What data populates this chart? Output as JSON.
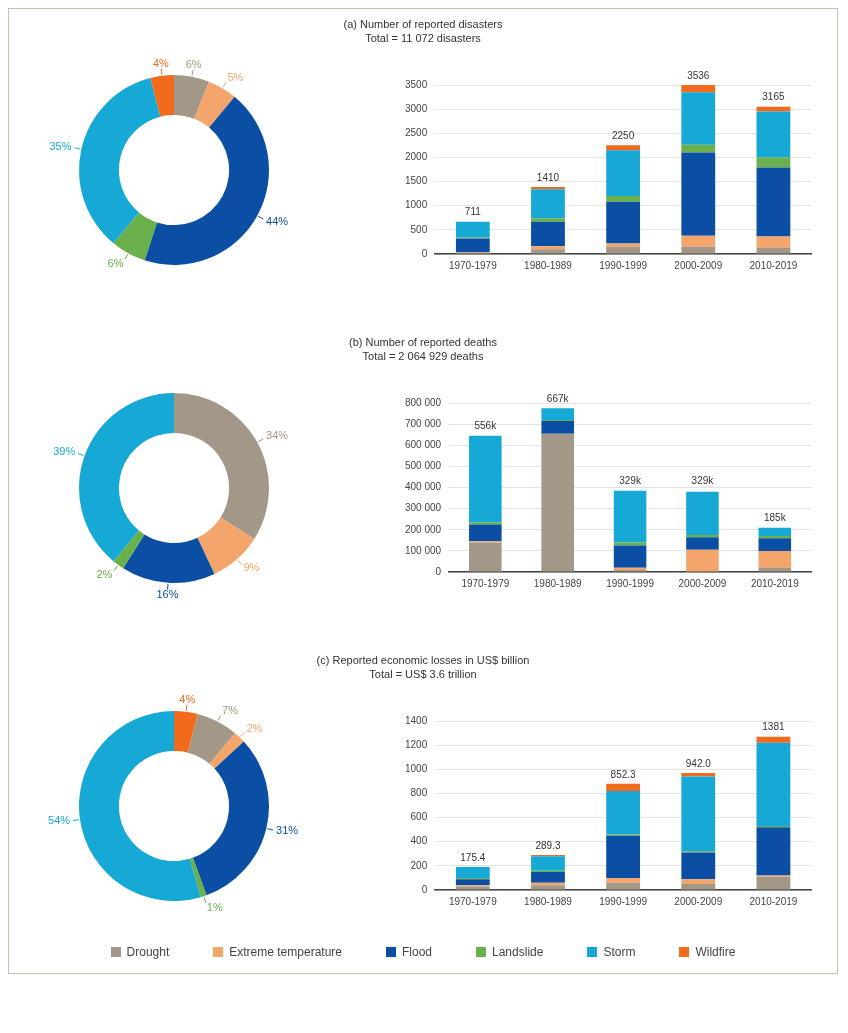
{
  "chart_data": [
    {
      "type": "donut",
      "title": "(a) Number of reported disasters",
      "subtitle": "Total = 11 072 disasters",
      "legend": "bottom",
      "categories": [
        "Drought",
        "Extreme temperature",
        "Flood",
        "Landslide",
        "Storm",
        "Wildfire"
      ],
      "values": [
        6,
        5,
        44,
        6,
        35,
        4
      ],
      "colors": [
        "#a39887",
        "#f4a56c",
        "#0a4fa3",
        "#6ab04c",
        "#17a9d6",
        "#f26a1b"
      ],
      "value_labels": [
        "6%",
        "5%",
        "44%",
        "6%",
        "35%",
        "4%"
      ]
    },
    {
      "type": "bar",
      "stacked": true,
      "categories": [
        "1970-1979",
        "1980-1989",
        "1990-1999",
        "2000-2009",
        "2010-2019"
      ],
      "ylim": [
        0,
        3500
      ],
      "yticks": [
        0,
        500,
        1000,
        1500,
        2000,
        2500,
        3000,
        3500
      ],
      "grid": "y",
      "annotations": [
        {
          "text": "711",
          "x": "1970-1979",
          "y": 680
        },
        {
          "text": "1410",
          "x": "1980-1989",
          "y": 1390
        },
        {
          "text": "2250",
          "x": "1990-1999",
          "y": 2250
        },
        {
          "text": "3536",
          "x": "2000-2009",
          "y": 3500
        },
        {
          "text": "3165",
          "x": "2010-2019",
          "y": 3050
        }
      ],
      "series": [
        {
          "color": "#a39887",
          "values": [
            30,
            100,
            150,
            150,
            130
          ]
        },
        {
          "color": "#f4a56c",
          "values": [
            10,
            60,
            70,
            230,
            230
          ]
        },
        {
          "color": "#0a4fa3",
          "values": [
            280,
            510,
            860,
            1720,
            1430
          ]
        },
        {
          "color": "#6ab04c",
          "values": [
            20,
            70,
            120,
            160,
            210
          ]
        },
        {
          "color": "#17a9d6",
          "values": [
            330,
            600,
            950,
            1090,
            950
          ]
        },
        {
          "color": "#f26a1b",
          "values": [
            null,
            50,
            100,
            150,
            100
          ]
        }
      ]
    },
    {
      "type": "donut",
      "title": "(b) Number of reported deaths",
      "subtitle": "Total =  2 064 929 deaths",
      "categories": [
        null,
        null,
        null,
        null,
        null
      ],
      "values": [
        34,
        9,
        16,
        2,
        39
      ],
      "colors": [
        "#a39887",
        "#f4a56c",
        "#0a4fa3",
        "#6ab04c",
        "#17a9d6"
      ],
      "value_labels": [
        "34%",
        "9%",
        "16%",
        "2%",
        "39%"
      ]
    },
    {
      "type": "bar",
      "stacked": true,
      "categories": [
        "1970-1979",
        "1980-1989",
        "1990-1999",
        "2000-2009",
        "2010-2019"
      ],
      "ylim": [
        0,
        800000
      ],
      "yticks": [
        0,
        {
          "value": 100000,
          "label": "100 000"
        },
        {
          "value": 200000,
          "label": "200 000"
        },
        {
          "value": 300000,
          "label": "300 000"
        },
        {
          "value": 400000,
          "label": "400 000"
        },
        {
          "value": 500000,
          "label": "500 000"
        },
        {
          "value": 600000,
          "label": "600 000"
        },
        {
          "value": 700000,
          "label": "700 000"
        },
        {
          "value": 800000,
          "label": "800 000"
        }
      ],
      "grid": "y",
      "annotations": [
        {
          "text": "556k",
          "x": "1970-1979",
          "y": 645000
        },
        {
          "text": "667k",
          "x": "1980-1989",
          "y": 775000
        },
        {
          "text": "329k",
          "x": "1990-1999",
          "y": 385000
        },
        {
          "text": "329k",
          "x": "2000-2009",
          "y": 385000
        },
        {
          "text": "185k",
          "x": "2010-2019",
          "y": 210000
        }
      ],
      "series": [
        {
          "color": "#a39887",
          "values": [
            140000,
            655000,
            10000,
            null,
            20000
          ]
        },
        {
          "color": "#f4a56c",
          "values": [
            5000,
            0,
            10000,
            105000,
            80000
          ]
        },
        {
          "color": "#0a4fa3",
          "values": [
            80000,
            60000,
            105000,
            60000,
            60000
          ]
        },
        {
          "color": "#6ab04c",
          "values": [
            10000,
            5000,
            15000,
            10000,
            10000
          ]
        },
        {
          "color": "#17a9d6",
          "values": [
            410000,
            55000,
            245000,
            205000,
            40000
          ]
        }
      ]
    },
    {
      "type": "donut",
      "title": "(c) Reported economic losses in US$ billion",
      "subtitle": "Total =  US$ 3.6 trillion",
      "categories": [
        null,
        null,
        null,
        null,
        null,
        null
      ],
      "values": [
        4,
        7,
        2,
        31,
        1,
        54
      ],
      "colors": [
        "#f26a1b",
        "#a39887",
        "#f4a56c",
        "#0a4fa3",
        "#6ab04c",
        "#17a9d6"
      ],
      "value_labels": [
        "4%",
        "7%",
        "2%",
        "31%",
        "1%",
        "54%"
      ]
    },
    {
      "type": "bar",
      "stacked": true,
      "categories": [
        "1970-1979",
        "1980-1989",
        "1990-1999",
        "2000-2009",
        "2010-2019"
      ],
      "ylim": [
        0,
        1400
      ],
      "yticks": [
        0,
        200,
        400,
        600,
        800,
        1000,
        1200,
        1400
      ],
      "grid": "y",
      "annotations": [
        {
          "text": "175.4",
          "x": "1970-1979",
          "y": 190
        },
        {
          "text": "289.3",
          "x": "1980-1989",
          "y": 290
        },
        {
          "text": "852.3",
          "x": "1990-1999",
          "y": 880
        },
        {
          "text": "942.0",
          "x": "2000-2009",
          "y": 970
        },
        {
          "text": "1381",
          "x": "2010-2019",
          "y": 1270
        }
      ],
      "series": [
        {
          "color": "#a39887",
          "values": [
            30,
            40,
            60,
            50,
            110
          ]
        },
        {
          "color": "#f4a56c",
          "values": [
            10,
            20,
            40,
            40,
            10
          ]
        },
        {
          "color": "#0a4fa3",
          "values": [
            50,
            90,
            350,
            220,
            400
          ]
        },
        {
          "color": "#6ab04c",
          "values": [
            10,
            10,
            10,
            10,
            10
          ]
        },
        {
          "color": "#17a9d6",
          "values": [
            90,
            120,
            360,
            620,
            690
          ]
        },
        {
          "color": "#f26a1b",
          "values": [
            0,
            10,
            60,
            30,
            50
          ]
        }
      ]
    }
  ]
}
